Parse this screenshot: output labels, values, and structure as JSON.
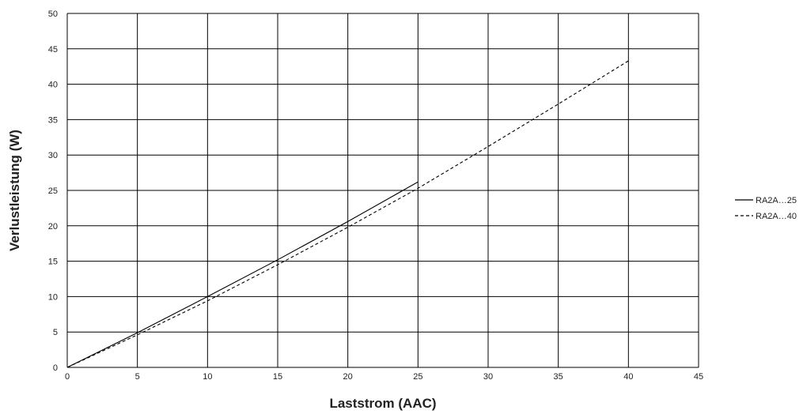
{
  "chart_data": {
    "type": "line",
    "title": "",
    "xlabel": "Laststrom (AAC)",
    "ylabel": "Verlustleistung (W)",
    "xlim": [
      0,
      45
    ],
    "ylim": [
      0,
      50
    ],
    "xticks": [
      0,
      5,
      10,
      15,
      20,
      25,
      30,
      35,
      40,
      45
    ],
    "yticks": [
      0,
      5,
      10,
      15,
      20,
      25,
      30,
      35,
      40,
      45,
      50
    ],
    "grid": true,
    "legend_position": "right",
    "series": [
      {
        "name": "RA2A…25",
        "line_style": "solid",
        "color": "#000000",
        "x": [
          0,
          5,
          10,
          15,
          20,
          25
        ],
        "y": [
          0,
          4.9,
          10.0,
          15.2,
          20.6,
          26.2
        ]
      },
      {
        "name": "RA2A…40",
        "line_style": "dashed",
        "color": "#000000",
        "x": [
          0,
          5,
          10,
          15,
          20,
          25,
          30,
          35,
          40
        ],
        "y": [
          0,
          4.6,
          9.4,
          14.5,
          19.8,
          25.3,
          31.2,
          37.2,
          43.3
        ]
      }
    ]
  }
}
